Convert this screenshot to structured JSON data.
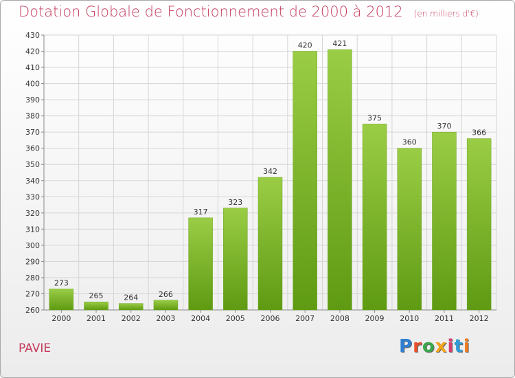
{
  "header": {
    "title": "Dotation Globale de Fonctionnement de 2000 à 2012",
    "unit": "(en milliers d'€)"
  },
  "footer": {
    "commune": "PAVIE",
    "logo": "Proxiti"
  },
  "colors": {
    "title": "#c53a5c",
    "bar_top": "#9acd45",
    "bar_bottom": "#5f9a13",
    "grid": "#d5d5d5"
  },
  "chart_data": {
    "type": "bar",
    "title": "Dotation Globale de Fonctionnement de 2000 à 2012",
    "subtitle": "(en milliers d'€)",
    "categories": [
      "2000",
      "2001",
      "2002",
      "2003",
      "2004",
      "2005",
      "2006",
      "2007",
      "2008",
      "2009",
      "2010",
      "2011",
      "2012"
    ],
    "values": [
      273,
      265,
      264,
      266,
      317,
      323,
      342,
      420,
      421,
      375,
      360,
      370,
      366
    ],
    "ylim": [
      260,
      430
    ],
    "ytick_step": 10,
    "grid": true,
    "xlabel": "",
    "ylabel": ""
  }
}
